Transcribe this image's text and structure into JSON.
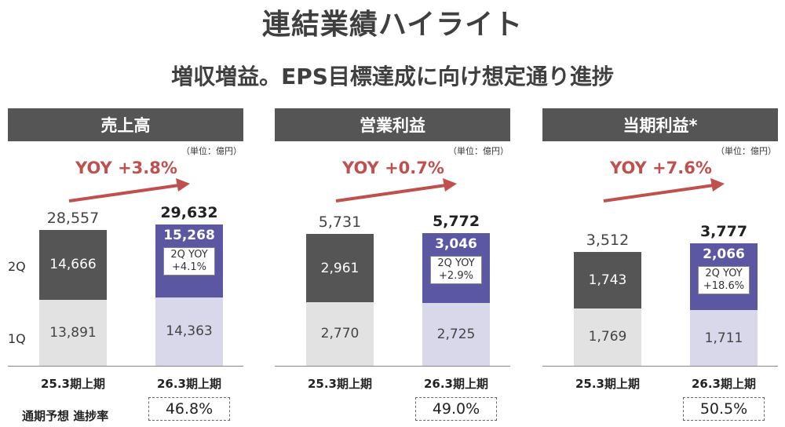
{
  "title": "連結業績ハイライト",
  "subtitle": "増収増益。EPS目標達成に向け想定通り進捗",
  "row_labels": {
    "q2": "2Q",
    "q1": "1Q"
  },
  "progress_label": "通期予想 進捗率",
  "colors": {
    "prev_2q": "#555555",
    "prev_1q": "#e2e2e2",
    "cur_2q": "#5b57a2",
    "cur_1q": "#d9d8ea",
    "yoy_arrow": "#c0504d"
  },
  "chart_data": [
    {
      "type": "bar",
      "stacked": true,
      "title": "売上高",
      "unit": "（単位：億円）",
      "yoy_label": "YOY +3.8%",
      "categories": [
        "25.3期上期",
        "26.3期上期"
      ],
      "series": [
        {
          "name": "1Q",
          "values": [
            13891,
            14363
          ],
          "labels": [
            "13,891",
            "14,363"
          ]
        },
        {
          "name": "2Q",
          "values": [
            14666,
            15268
          ],
          "labels": [
            "14,666",
            "15,268"
          ]
        }
      ],
      "totals": [
        28557,
        29632
      ],
      "total_labels": [
        "28,557",
        "29,632"
      ],
      "q2_yoy": [
        "2Q YOY",
        "+4.1%"
      ],
      "progress": "46.8%"
    },
    {
      "type": "bar",
      "stacked": true,
      "title": "営業利益",
      "unit": "（単位：億円）",
      "yoy_label": "YOY +0.7%",
      "categories": [
        "25.3期上期",
        "26.3期上期"
      ],
      "series": [
        {
          "name": "1Q",
          "values": [
            2770,
            2725
          ],
          "labels": [
            "2,770",
            "2,725"
          ]
        },
        {
          "name": "2Q",
          "values": [
            2961,
            3046
          ],
          "labels": [
            "2,961",
            "3,046"
          ]
        }
      ],
      "totals": [
        5731,
        5772
      ],
      "total_labels": [
        "5,731",
        "5,772"
      ],
      "q2_yoy": [
        "2Q YOY",
        "+2.9%"
      ],
      "progress": "49.0%"
    },
    {
      "type": "bar",
      "stacked": true,
      "title": "当期利益*",
      "unit": "（単位：億円）",
      "yoy_label": "YOY +7.6%",
      "categories": [
        "25.3期上期",
        "26.3期上期"
      ],
      "series": [
        {
          "name": "1Q",
          "values": [
            1769,
            1711
          ],
          "labels": [
            "1,769",
            "1,711"
          ]
        },
        {
          "name": "2Q",
          "values": [
            1743,
            2066
          ],
          "labels": [
            "1,743",
            "2,066"
          ]
        }
      ],
      "totals": [
        3512,
        3777
      ],
      "total_labels": [
        "3,512",
        "3,777"
      ],
      "q2_yoy": [
        "2Q YOY",
        "+18.6%"
      ],
      "progress": "50.5%"
    }
  ]
}
